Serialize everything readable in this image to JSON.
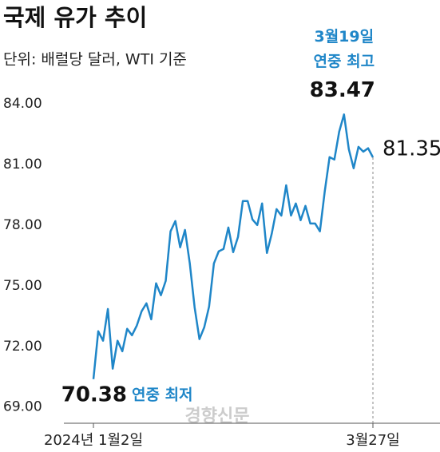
{
  "chart_data": {
    "type": "line",
    "title": "국제 유가 추이",
    "subtitle": "단위: 배럴당 달러, WTI 기준",
    "categories": [
      "2024년 1월2일",
      null,
      null,
      null,
      null,
      null,
      null,
      null,
      null,
      null,
      null,
      null,
      null,
      null,
      null,
      null,
      null,
      null,
      null,
      null,
      null,
      null,
      null,
      null,
      null,
      null,
      null,
      null,
      null,
      null,
      null,
      null,
      null,
      null,
      null,
      null,
      null,
      null,
      null,
      null,
      null,
      null,
      null,
      null,
      null,
      null,
      null,
      null,
      null,
      null,
      null,
      null,
      null,
      null,
      null,
      null,
      null,
      null,
      "3월27일"
    ],
    "series": [
      {
        "name": "WTI",
        "color": "#1f86c8",
        "values": [
          70.38,
          72.75,
          72.28,
          73.85,
          70.9,
          72.28,
          71.76,
          72.87,
          72.55,
          73.03,
          73.74,
          74.13,
          73.34,
          75.12,
          74.53,
          75.24,
          77.69,
          78.2,
          76.9,
          77.76,
          76.1,
          73.93,
          72.36,
          72.95,
          73.97,
          76.1,
          76.7,
          76.82,
          77.88,
          76.66,
          77.41,
          79.19,
          79.19,
          78.28,
          78.0,
          79.07,
          76.62,
          77.57,
          78.79,
          78.47,
          79.97,
          78.47,
          79.07,
          78.24,
          78.95,
          78.08,
          78.08,
          77.69,
          79.66,
          81.36,
          81.24,
          82.62,
          83.47,
          81.75,
          80.81,
          81.87,
          81.63,
          81.8,
          81.35
        ]
      }
    ],
    "ylim": [
      68.2,
      85.3
    ],
    "yticks": [
      {
        "value": 69,
        "label": "69.00"
      },
      {
        "value": 72,
        "label": "72.00"
      },
      {
        "value": 75,
        "label": "75.00"
      },
      {
        "value": 78,
        "label": "78.00"
      },
      {
        "value": 81,
        "label": "81.00"
      },
      {
        "value": 84,
        "label": "84.00"
      }
    ],
    "annotations": {
      "min_label": "연중 최저",
      "max_date": "3월19일",
      "max_label": "연중 최고"
    },
    "watermark": "경향신문"
  }
}
